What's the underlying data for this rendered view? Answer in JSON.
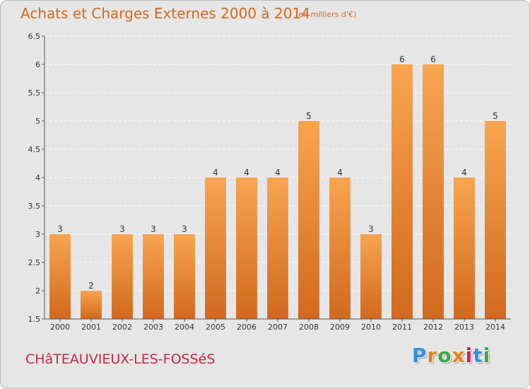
{
  "header": {
    "title": "Achats et Charges Externes 2000 à 2014",
    "unit": "(en milliers d'€)"
  },
  "footer": {
    "town": "CHâTEAUVIEUX-LES-FOSSéS",
    "logo": {
      "letters": [
        "P",
        "r",
        "o",
        "x",
        "i",
        "t",
        "i"
      ],
      "colors": [
        "#3a8fd6",
        "#e8821e",
        "#3aa84a",
        "#e8821e",
        "#c8264a",
        "#3a8fd6",
        "#3aa84a"
      ]
    }
  },
  "chart_data": {
    "type": "bar",
    "title": "Achats et Charges Externes 2000 à 2014",
    "subtitle": "(en milliers d'€)",
    "categories": [
      "2000",
      "2001",
      "2002",
      "2003",
      "2004",
      "2005",
      "2006",
      "2007",
      "2008",
      "2009",
      "2010",
      "2011",
      "2012",
      "2013",
      "2014"
    ],
    "values": [
      3,
      2,
      3,
      3,
      3,
      4,
      4,
      4,
      5,
      4,
      3,
      6,
      6,
      4,
      5
    ],
    "ylim": [
      1.5,
      6.5
    ],
    "yticks": [
      "1.5",
      "2",
      "2.5",
      "3",
      "3.5",
      "4",
      "4.5",
      "5",
      "5.5",
      "6",
      "6.5"
    ],
    "grid": "horizontal-dashed",
    "bar_color_top": "#f7a550",
    "bar_color_bottom": "#d2691e",
    "xlabel": "",
    "ylabel": ""
  }
}
